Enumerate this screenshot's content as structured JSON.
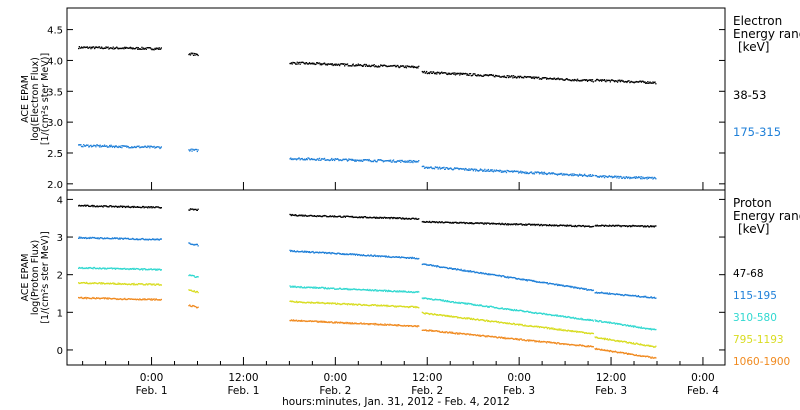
{
  "chart_data": [
    {
      "type": "scatter",
      "panel": "electron",
      "ylabel": [
        "ACE EPAM",
        "log(Electron Flux)",
        "[1/(cm²s ster MeV)]"
      ],
      "ylim": [
        1.9,
        4.85
      ],
      "yticks": [
        "2.0",
        "2.5",
        "3.0",
        "3.5",
        "4.0",
        "4.5"
      ],
      "legend_title": [
        "Electron",
        "Energy range",
        "[keV]"
      ],
      "series": [
        {
          "name": "38-53",
          "color": "#000000",
          "segments": [
            [
              -0.4,
              4.22,
              0.05,
              4.2
            ],
            [
              0.2,
              4.12,
              0.25,
              4.1
            ],
            [
              0.75,
              3.97,
              1.45,
              3.9
            ],
            [
              1.47,
              3.82,
              2.4,
              3.68
            ],
            [
              2.41,
              3.69,
              2.74,
              3.65
            ]
          ]
        },
        {
          "name": "175-315",
          "color": "#1e7fd8",
          "segments": [
            [
              -0.4,
              2.63,
              0.05,
              2.6
            ],
            [
              0.2,
              2.56,
              0.25,
              2.55
            ],
            [
              0.75,
              2.42,
              1.45,
              2.37
            ],
            [
              1.47,
              2.28,
              2.4,
              2.14
            ],
            [
              2.41,
              2.13,
              2.74,
              2.1
            ]
          ]
        }
      ]
    },
    {
      "type": "scatter",
      "panel": "proton",
      "ylabel": [
        "ACE EPAM",
        "log(Proton Flux)",
        "[1/(cm²s ster MeV)]"
      ],
      "ylim": [
        -0.4,
        4.25
      ],
      "yticks": [
        "0",
        "1",
        "2",
        "3",
        "4"
      ],
      "legend_title": [
        "Proton",
        "Energy range",
        "[keV]"
      ],
      "series": [
        {
          "name": "47-68",
          "color": "#000000",
          "segments": [
            [
              -0.4,
              3.85,
              0.05,
              3.8
            ],
            [
              0.2,
              3.75,
              0.25,
              3.74
            ],
            [
              0.75,
              3.6,
              1.45,
              3.5
            ],
            [
              1.47,
              3.42,
              2.4,
              3.3
            ],
            [
              2.41,
              3.32,
              2.74,
              3.3
            ]
          ]
        },
        {
          "name": "115-195",
          "color": "#1e7fd8",
          "segments": [
            [
              -0.4,
              3.0,
              0.05,
              2.95
            ],
            [
              0.2,
              2.85,
              0.25,
              2.8
            ],
            [
              0.75,
              2.65,
              1.45,
              2.45
            ],
            [
              1.47,
              2.3,
              2.4,
              1.6
            ],
            [
              2.41,
              1.55,
              2.74,
              1.4
            ]
          ]
        },
        {
          "name": "310-580",
          "color": "#30d8d0",
          "segments": [
            [
              -0.4,
              2.2,
              0.05,
              2.15
            ],
            [
              0.2,
              2.0,
              0.25,
              1.95
            ],
            [
              0.75,
              1.7,
              1.45,
              1.55
            ],
            [
              1.47,
              1.4,
              2.4,
              0.8
            ],
            [
              2.41,
              0.8,
              2.74,
              0.55
            ]
          ]
        },
        {
          "name": "795-1193",
          "color": "#d8dc20",
          "segments": [
            [
              -0.4,
              1.8,
              0.05,
              1.75
            ],
            [
              0.2,
              1.6,
              0.25,
              1.55
            ],
            [
              0.75,
              1.3,
              1.45,
              1.15
            ],
            [
              1.47,
              1.0,
              2.4,
              0.45
            ],
            [
              2.41,
              0.35,
              2.74,
              0.1
            ]
          ]
        },
        {
          "name": "1060-1900",
          "color": "#f08a20",
          "segments": [
            [
              -0.4,
              1.4,
              0.05,
              1.35
            ],
            [
              0.2,
              1.2,
              0.25,
              1.15
            ],
            [
              0.75,
              0.8,
              1.45,
              0.65
            ],
            [
              1.47,
              0.55,
              2.4,
              0.1
            ],
            [
              2.41,
              0.05,
              2.74,
              -0.2
            ]
          ]
        }
      ]
    }
  ],
  "xaxis": {
    "ticks": [
      {
        "t": 0.0,
        "time": "0:00",
        "day": "Feb. 1"
      },
      {
        "t": 0.5,
        "time": "12:00",
        "day": "Feb. 1"
      },
      {
        "t": 1.0,
        "time": "0:00",
        "day": "Feb. 2"
      },
      {
        "t": 1.5,
        "time": "12:00",
        "day": "Feb. 2"
      },
      {
        "t": 2.0,
        "time": "0:00",
        "day": "Feb. 3"
      },
      {
        "t": 2.5,
        "time": "12:00",
        "day": "Feb. 3"
      },
      {
        "t": 3.0,
        "time": "0:00",
        "day": "Feb. 4"
      }
    ],
    "label": "hours:minutes, Jan. 31, 2012 - Feb. 4, 2012"
  }
}
